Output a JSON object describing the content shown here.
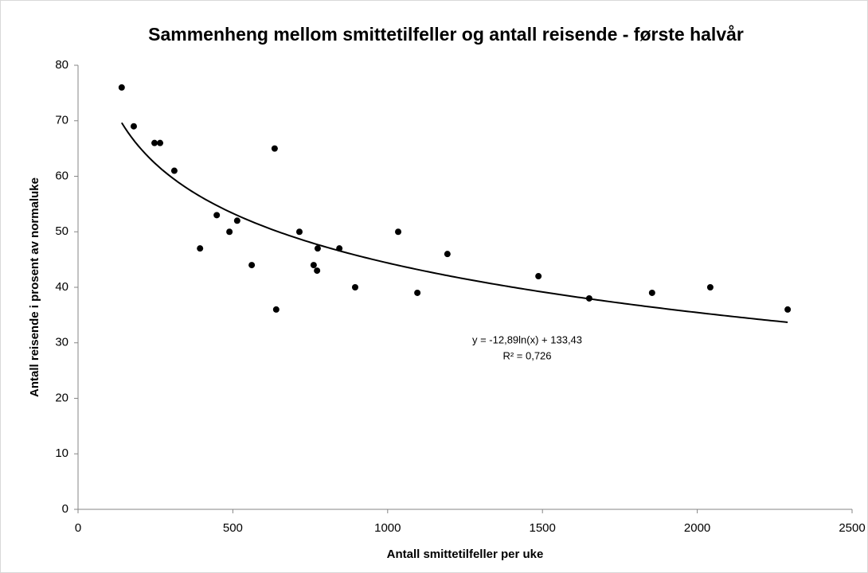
{
  "chart_data": {
    "type": "scatter",
    "title": "Sammenheng mellom smittetilfeller og antall reisende - første halvår",
    "x_label": "Antall smittetilfeller per uke",
    "y_label": "Antall reisende i prosent av normaluke",
    "x": [
      141,
      180,
      247,
      265,
      311,
      394,
      448,
      489,
      514,
      561,
      635,
      640,
      715,
      761,
      774,
      772,
      844,
      895,
      1034,
      1096,
      1193,
      1487,
      1651,
      1854,
      2042,
      2292
    ],
    "values": [
      76,
      69,
      66,
      66,
      61,
      47,
      53,
      50,
      52,
      44,
      65,
      36,
      50,
      44,
      47,
      43,
      47,
      40,
      50,
      39,
      46,
      42,
      38,
      39,
      40,
      36
    ],
    "color": "#000000",
    "xlim": [
      0,
      2500
    ],
    "xticks": [
      0,
      500,
      1000,
      1500,
      2000,
      2500
    ],
    "ylim": [
      0,
      80
    ],
    "yticks": [
      0,
      10,
      20,
      30,
      40,
      50,
      60,
      70,
      80
    ],
    "grid": false,
    "trendline": {
      "type": "log",
      "slope": -12.89,
      "intercept": 133.43,
      "label": "y = -12,89ln(x) + 133,43",
      "r2_label": "R² = 0,726"
    }
  }
}
